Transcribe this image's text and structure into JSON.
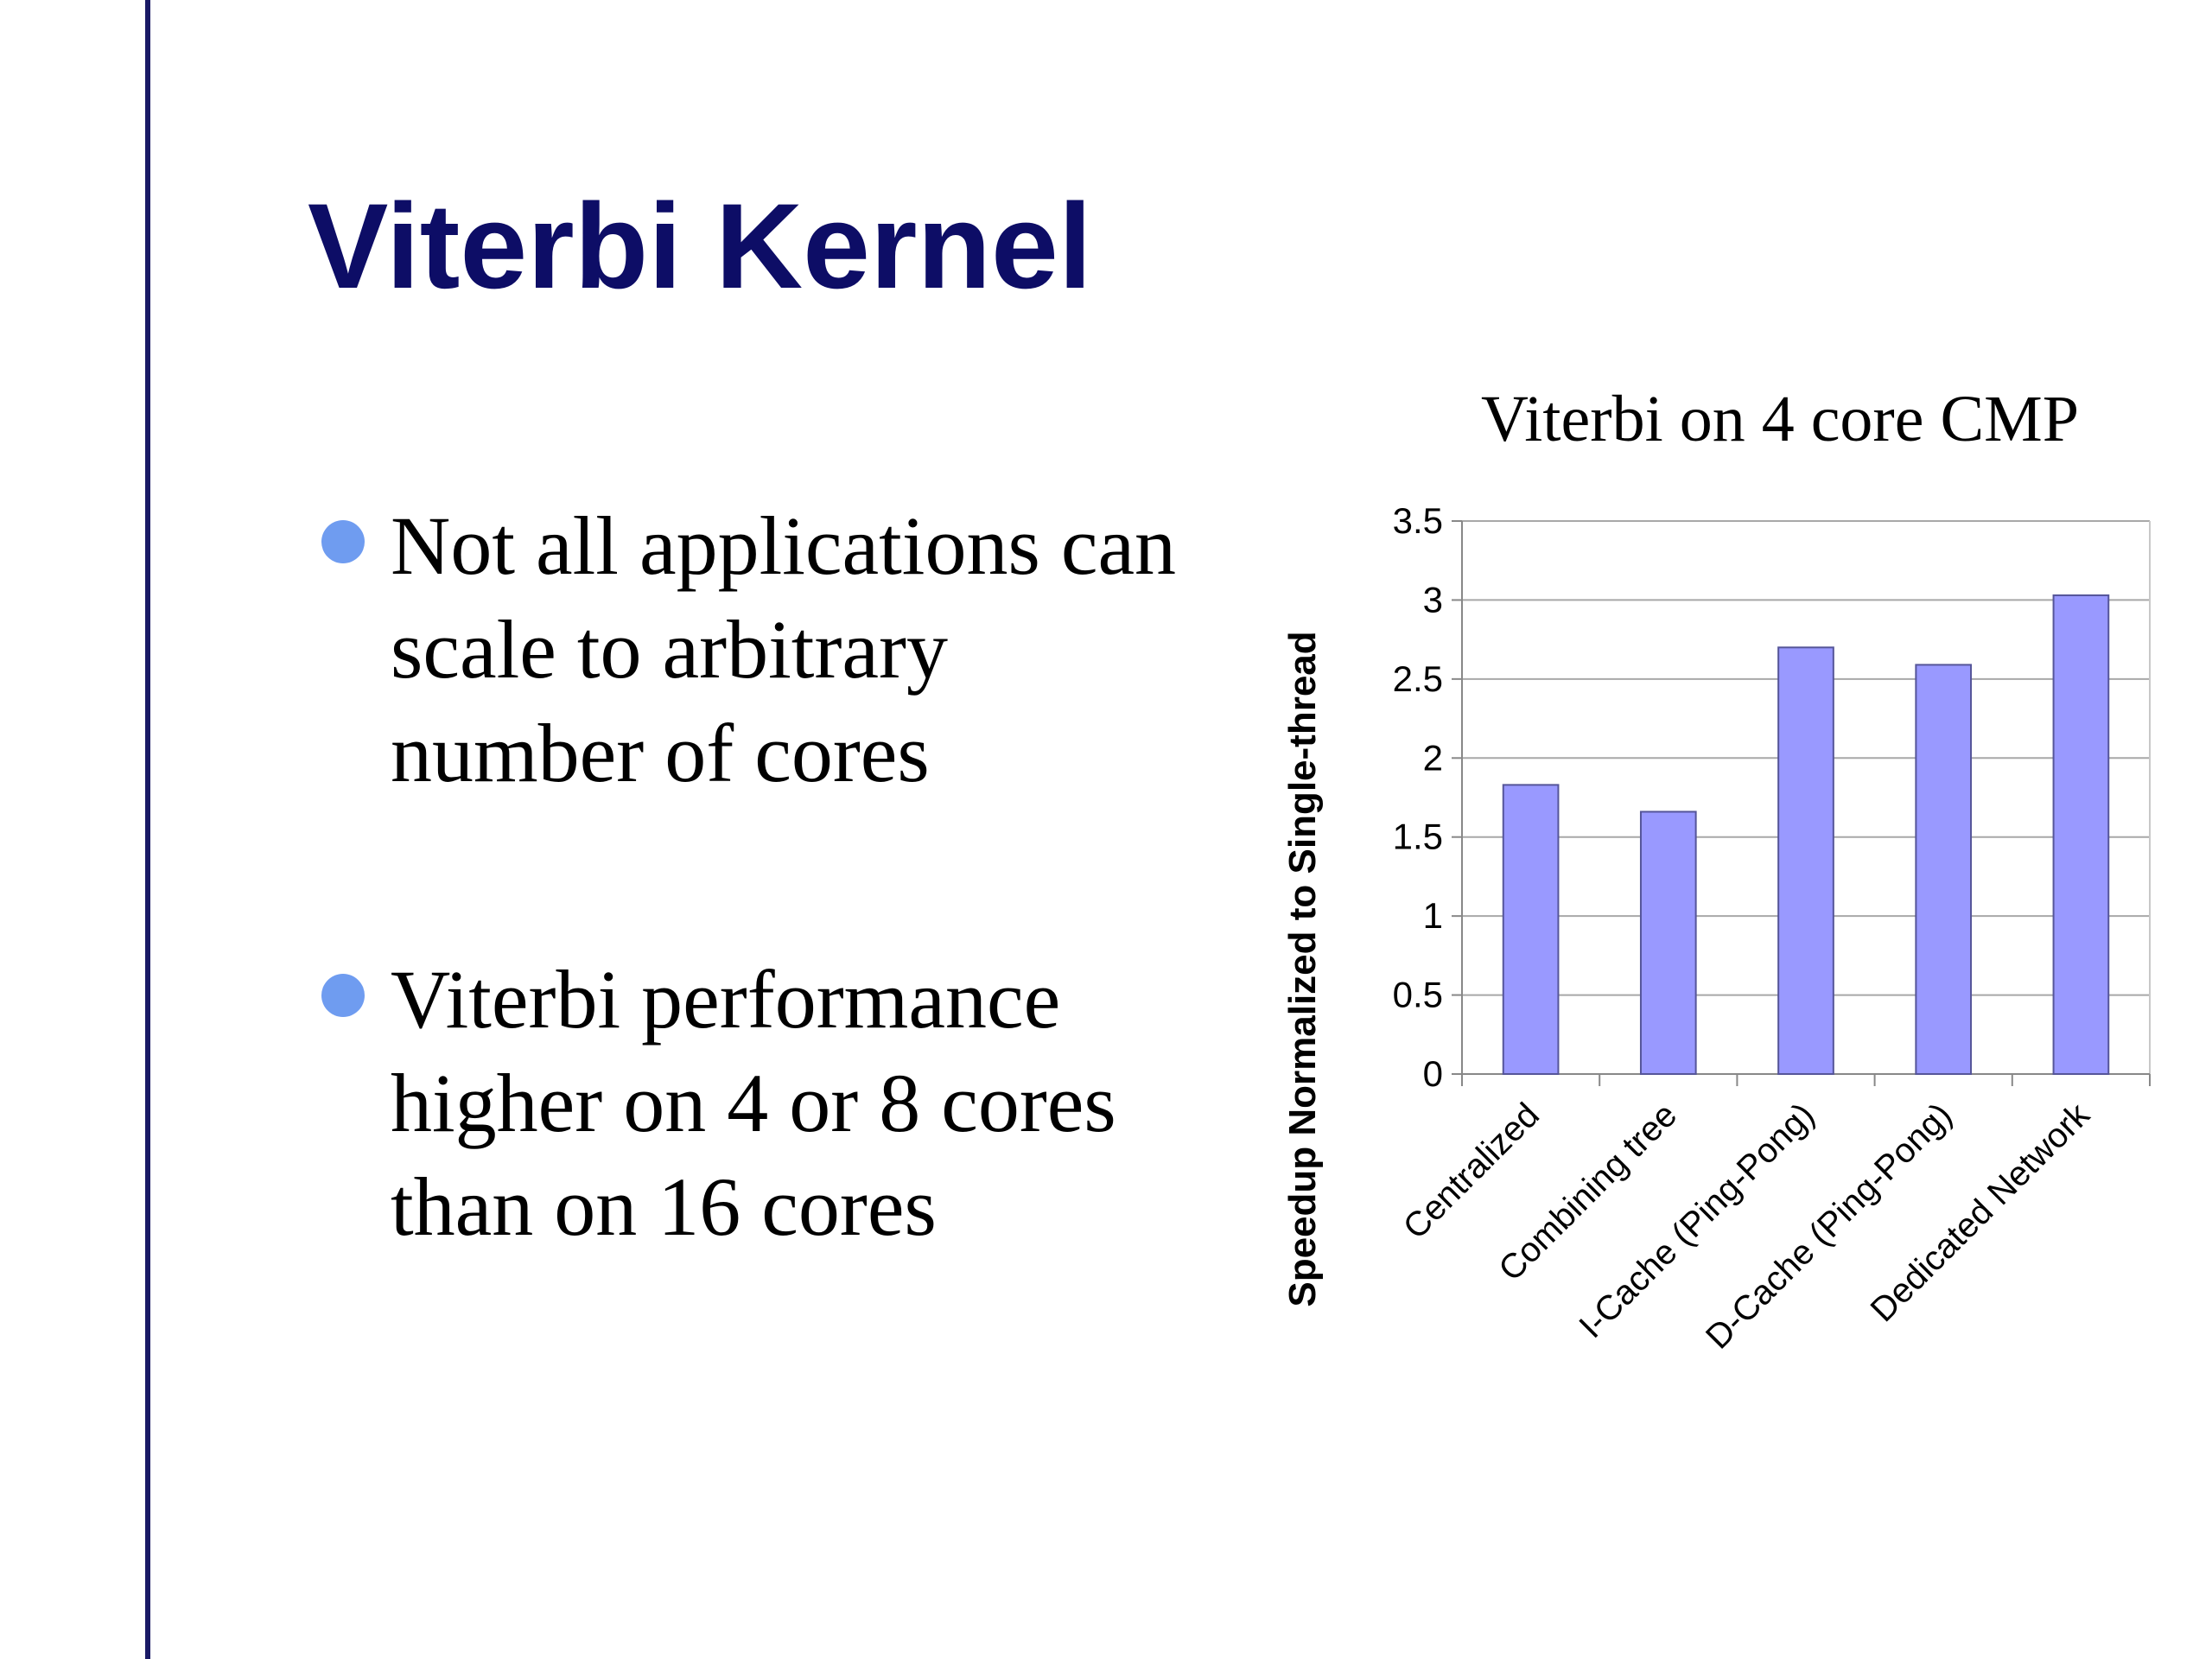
{
  "slide": {
    "title": "Viterbi Kernel",
    "bullets": [
      "Not all applications can scale to arbitrary number of cores",
      "Viterbi performance higher on 4 or 8 cores than on 16 cores"
    ]
  },
  "colors": {
    "title": "#0d0d66",
    "rule": "#1a1a66",
    "bullet": "#6f9cf0",
    "bar_fill": "#9999ff",
    "bar_stroke": "#555599",
    "grid": "#a8a8a8"
  },
  "chart_data": {
    "type": "bar",
    "title": "Viterbi on 4 core CMP",
    "xlabel": "",
    "ylabel": "Speedup Normalized to Single-thread",
    "categories": [
      "Centralized",
      "Combining tree",
      "I-Cache (Ping-Pong)",
      "D-Cache (Ping-Pong)",
      "Dedicated Network"
    ],
    "values": [
      1.83,
      1.66,
      2.7,
      2.59,
      3.03
    ],
    "ylim": [
      0,
      3.5
    ],
    "yticks": [
      "0",
      "0.5",
      "1",
      "1.5",
      "2",
      "2.5",
      "3",
      "3.5"
    ],
    "grid": true,
    "legend": false
  }
}
